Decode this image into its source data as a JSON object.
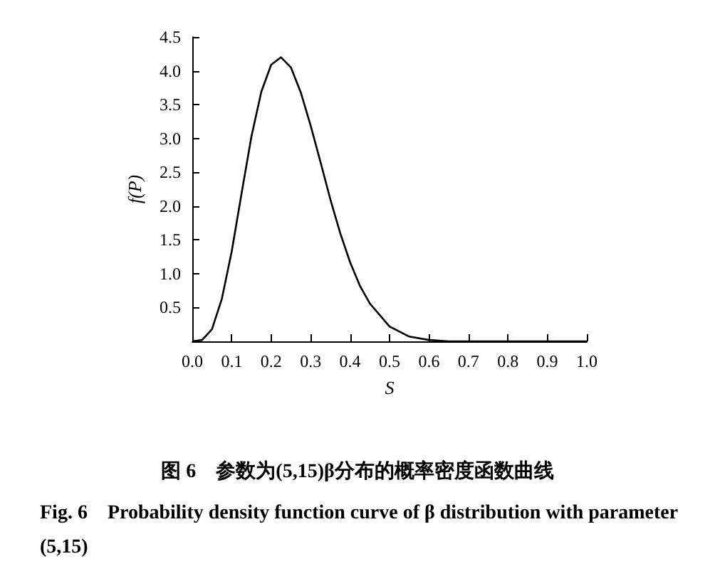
{
  "chart_data": {
    "type": "line",
    "title": "图 6　参数为(5,15)β分布的概率密度函数曲线",
    "subtitle": "Fig. 6　Probability density function curve of β distribution with parameter (5,15)",
    "xlabel": "S",
    "ylabel": "f(P)",
    "x": [
      0,
      0.025,
      0.05,
      0.075,
      0.1,
      0.125,
      0.15,
      0.175,
      0.2,
      0.225,
      0.25,
      0.275,
      0.3,
      0.325,
      0.35,
      0.375,
      0.4,
      0.425,
      0.45,
      0.5,
      0.55,
      0.6,
      0.65,
      0.7,
      0.8,
      0.9,
      1.0
    ],
    "series": [
      {
        "color": "#000000",
        "values": [
          0,
          0.02,
          0.18,
          0.63,
          1.33,
          2.19,
          3.03,
          3.69,
          4.09,
          4.2,
          4.05,
          3.68,
          3.19,
          2.65,
          2.1,
          1.6,
          1.17,
          0.82,
          0.56,
          0.22,
          0.07,
          0.02,
          0,
          0,
          0,
          0,
          0
        ]
      }
    ],
    "xlim": [
      0,
      1
    ],
    "xticks": [
      {
        "value": 0,
        "label": "0.0"
      },
      0.1,
      0.2,
      0.3,
      0.4,
      0.5,
      0.6,
      0.7,
      0.8,
      0.9,
      {
        "value": 1,
        "label": "1.0"
      }
    ],
    "ylim": [
      0,
      4.5
    ],
    "yticks": [
      0.5,
      {
        "value": 1,
        "label": "1.0"
      },
      1.5,
      {
        "value": 2,
        "label": "2.0"
      },
      2.5,
      {
        "value": 3,
        "label": "3.0"
      },
      3.5,
      {
        "value": 4,
        "label": "4.0"
      },
      4.5
    ],
    "grid": false,
    "marker": "none",
    "line_style": "solid"
  }
}
